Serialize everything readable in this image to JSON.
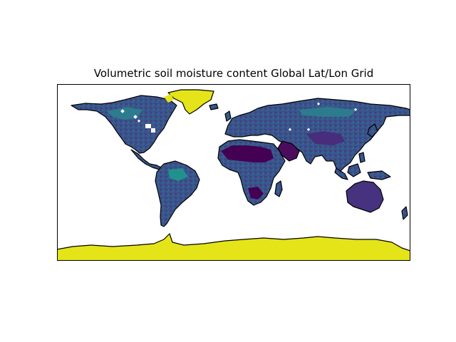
{
  "figure": {
    "title": "Volumetric soil moisture content Global Lat/Lon Grid",
    "projection": "PlateCarree",
    "extent": {
      "lon": [
        -180,
        180
      ],
      "lat": [
        -90,
        90
      ]
    },
    "colormap": "viridis"
  },
  "colors": {
    "ocean": "#ffffff",
    "coastline": "#000000",
    "low_moisture": "#440154",
    "mid_moisture": "#3b528b",
    "mid_high_moisture": "#2c7b8e",
    "high_moisture": "#21918c",
    "ice_fill": "#e4e419"
  }
}
